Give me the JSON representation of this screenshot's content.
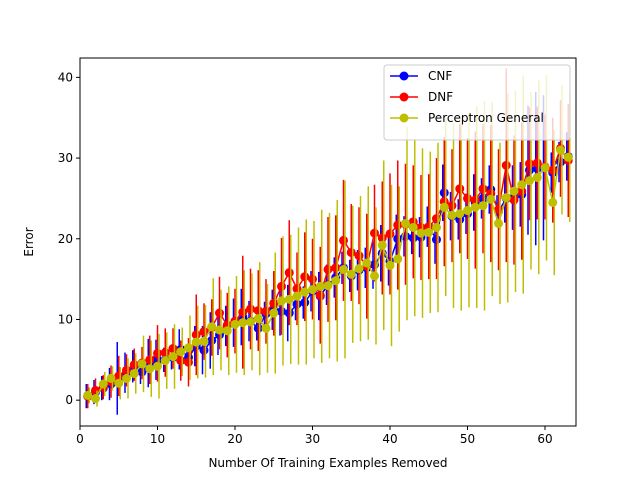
{
  "chart_data": {
    "type": "line",
    "title": "",
    "xlabel": "Number Of Training Examples Removed",
    "ylabel": "Error",
    "xlim": [
      0,
      64
    ],
    "ylim": [
      -3.2,
      42.4
    ],
    "xticks": [
      0,
      10,
      20,
      30,
      40,
      50,
      60
    ],
    "yticks": [
      0,
      10,
      20,
      30,
      40
    ],
    "legend_position": "top-right",
    "grid": false,
    "x": [
      1,
      2,
      3,
      4,
      5,
      6,
      7,
      8,
      9,
      10,
      11,
      12,
      13,
      14,
      15,
      16,
      17,
      18,
      19,
      20,
      21,
      22,
      23,
      24,
      25,
      26,
      27,
      28,
      29,
      30,
      31,
      32,
      33,
      34,
      35,
      36,
      37,
      38,
      39,
      40,
      41,
      42,
      43,
      44,
      45,
      46,
      47,
      48,
      49,
      50,
      51,
      52,
      53,
      54,
      55,
      56,
      57,
      58,
      59,
      60,
      61,
      62,
      63
    ],
    "series": [
      {
        "name": "CNF",
        "color": "#0000ff",
        "values": [
          0.5,
          1.0,
          1.5,
          2.0,
          2.7,
          3.4,
          4.2,
          3.5,
          4.6,
          5.0,
          5.0,
          5.3,
          6.3,
          5.3,
          6.7,
          6.2,
          7.4,
          8.1,
          9.2,
          9.6,
          10.3,
          9.8,
          8.9,
          10.7,
          11.2,
          11.0,
          10.8,
          11.9,
          12.1,
          13.5,
          12.9,
          14.3,
          15.2,
          16.4,
          15.4,
          16.1,
          16.4,
          16.8,
          18.2,
          17.2,
          20.0,
          20.3,
          20.1,
          20.2,
          21.5,
          19.9,
          25.7,
          22.8,
          22.4,
          23.1,
          24.5,
          25.0,
          26.1,
          23.4,
          25.0,
          25.1,
          25.5,
          28.5,
          28.7,
          28.8,
          28.2,
          29.5,
          30.2
        ],
        "err": [
          1.5,
          1.5,
          1.5,
          2.0,
          4.5,
          2.5,
          2.0,
          1.5,
          3.0,
          2.5,
          1.5,
          1.5,
          2.5,
          1.0,
          2.5,
          3.0,
          3.5,
          2.5,
          2.5,
          3.0,
          3.5,
          2.5,
          1.5,
          1.5,
          2.5,
          3.0,
          3.5,
          2.0,
          2.0,
          2.5,
          3.0,
          2.5,
          2.5,
          2.0,
          2.0,
          2.5,
          2.5,
          3.0,
          3.5,
          3.0,
          3.0,
          2.5,
          2.0,
          2.5,
          2.5,
          3.0,
          3.5,
          3.0,
          2.5,
          2.5,
          3.5,
          2.5,
          3.0,
          2.0,
          3.0,
          4.0,
          4.0,
          8.0,
          9.5,
          9.0,
          2.5,
          2.5,
          3.0
        ]
      },
      {
        "name": "DNF",
        "color": "#ff0000",
        "values": [
          0.5,
          1.2,
          1.6,
          2.3,
          3.0,
          3.7,
          4.4,
          4.6,
          5.0,
          5.8,
          5.9,
          6.4,
          4.9,
          4.7,
          8.1,
          8.5,
          9.0,
          10.8,
          9.3,
          9.8,
          10.9,
          11.3,
          11.1,
          11.0,
          12.0,
          14.1,
          15.8,
          13.8,
          15.3,
          15.0,
          13.0,
          16.2,
          16.4,
          19.8,
          18.3,
          17.9,
          16.6,
          20.7,
          20.1,
          20.6,
          21.7,
          21.8,
          22.1,
          21.4,
          21.5,
          22.5,
          24.6,
          24.1,
          26.2,
          25.0,
          24.8,
          26.2,
          25.6,
          23.6,
          29.1,
          24.8,
          25.9,
          29.3,
          29.4,
          28.9,
          28.5,
          31.2,
          29.7
        ],
        "err": [
          1.5,
          1.5,
          1.5,
          2.0,
          2.5,
          2.0,
          2.0,
          2.0,
          3.0,
          3.5,
          3.0,
          2.5,
          2.5,
          3.0,
          5.0,
          3.5,
          3.5,
          4.5,
          4.0,
          4.0,
          7.0,
          5.0,
          5.0,
          4.0,
          4.0,
          6.0,
          6.5,
          4.5,
          5.5,
          5.0,
          6.0,
          6.5,
          6.5,
          7.5,
          6.0,
          6.0,
          6.5,
          6.0,
          7.0,
          7.5,
          8.0,
          7.5,
          7.0,
          6.5,
          6.5,
          7.5,
          8.0,
          7.0,
          8.0,
          7.5,
          8.5,
          8.0,
          8.5,
          7.5,
          12.0,
          8.0,
          8.5,
          7.0,
          7.0,
          6.5,
          6.5,
          6.0,
          7.0
        ]
      },
      {
        "name": "Perceptron General",
        "color": "#bfbf00",
        "values": [
          0.6,
          0.2,
          2.0,
          2.7,
          2.1,
          2.7,
          3.3,
          4.5,
          3.9,
          4.2,
          4.9,
          5.4,
          6.0,
          6.5,
          7.2,
          7.3,
          9.1,
          8.7,
          8.6,
          9.4,
          9.6,
          9.7,
          10.1,
          8.9,
          10.8,
          12.3,
          12.5,
          12.9,
          13.4,
          13.7,
          14.1,
          14.2,
          14.8,
          16.2,
          15.6,
          16.3,
          17.0,
          15.4,
          19.2,
          16.7,
          17.5,
          21.9,
          21.4,
          20.7,
          20.8,
          21.4,
          23.9,
          22.9,
          23.1,
          23.5,
          23.9,
          24.1,
          24.9,
          21.9,
          25.1,
          25.9,
          26.7,
          27.2,
          27.6,
          28.8,
          24.5,
          31.0,
          30.1
        ],
        "err": [
          1.0,
          1.0,
          1.5,
          1.5,
          2.0,
          2.5,
          2.5,
          3.5,
          3.5,
          4.0,
          3.5,
          4.0,
          3.0,
          4.0,
          4.5,
          4.5,
          6.0,
          5.0,
          5.5,
          6.0,
          6.5,
          6.0,
          7.0,
          5.5,
          7.5,
          8.0,
          8.0,
          8.5,
          9.0,
          8.5,
          9.5,
          9.0,
          10.0,
          11.0,
          8.5,
          9.0,
          9.5,
          8.5,
          10.5,
          10.0,
          9.0,
          12.0,
          11.0,
          10.5,
          10.0,
          10.5,
          11.0,
          11.5,
          12.0,
          12.0,
          12.5,
          13.0,
          12.0,
          10.0,
          13.0,
          12.5,
          13.5,
          11.0,
          12.0,
          11.5,
          9.0,
          8.0,
          8.0
        ]
      }
    ]
  }
}
